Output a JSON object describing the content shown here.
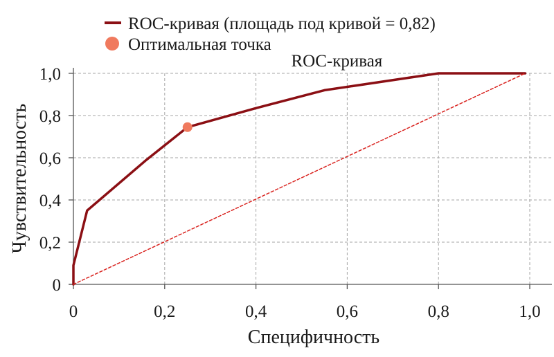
{
  "chart_data": {
    "type": "line",
    "title": "",
    "xlabel": "Специфичность",
    "ylabel": "Чувствительность",
    "xlim": [
      0,
      1
    ],
    "ylim": [
      0,
      1
    ],
    "grid": true,
    "legend_placement": "top",
    "x_ticks": [
      0,
      0.2,
      0.4,
      0.6,
      0.8,
      1.0
    ],
    "x_tick_labels": [
      "0",
      "0,2",
      "0,4",
      "0,6",
      "0,8",
      "1,0"
    ],
    "y_ticks": [
      0,
      0.2,
      0.4,
      0.6,
      0.8,
      1.0
    ],
    "y_tick_labels": [
      "0",
      "0,2",
      "0,4",
      "0,6",
      "0,8",
      "1,0"
    ],
    "series": [
      {
        "name": "ROC-кривая (площадь под кривой = 0,82)",
        "style": "solid",
        "color": "#8b0f14",
        "points": [
          {
            "x": 0.0,
            "y": 0.0
          },
          {
            "x": 0.0,
            "y": 0.09
          },
          {
            "x": 0.03,
            "y": 0.35
          },
          {
            "x": 0.16,
            "y": 0.59
          },
          {
            "x": 0.25,
            "y": 0.745
          },
          {
            "x": 0.4,
            "y": 0.835
          },
          {
            "x": 0.55,
            "y": 0.92
          },
          {
            "x": 0.8,
            "y": 1.0
          },
          {
            "x": 0.99,
            "y": 1.0
          }
        ]
      },
      {
        "name": "",
        "style": "dashed",
        "color": "#d9231f",
        "points": [
          {
            "x": 0.0,
            "y": 0.0
          },
          {
            "x": 0.99,
            "y": 1.0
          }
        ]
      }
    ],
    "markers": [
      {
        "name": "Оптимальная точка",
        "x": 0.25,
        "y": 0.745,
        "color": "#f07a5e"
      }
    ],
    "annotations": [
      {
        "text": "ROC-кривая",
        "x": 0.6,
        "y": 1.0
      }
    ]
  }
}
